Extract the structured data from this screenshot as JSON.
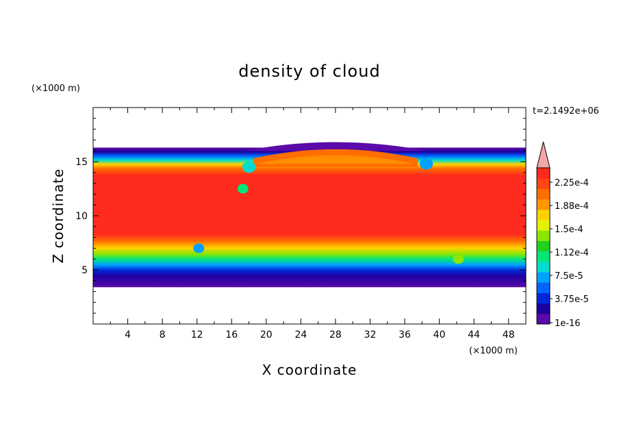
{
  "chart_data": {
    "type": "heatmap",
    "title": "density of cloud",
    "xlabel": "X coordinate",
    "ylabel": "Z coordinate",
    "x_unit": "(×1000 m)",
    "y_unit": "(×1000 m)",
    "time_label": "t=2.1492e+06",
    "xlim": [
      0,
      50
    ],
    "ylim": [
      0,
      20
    ],
    "x_ticks": [
      4,
      8,
      12,
      16,
      20,
      24,
      28,
      32,
      36,
      40,
      44,
      48
    ],
    "y_ticks": [
      5,
      10,
      15
    ],
    "colorbar": {
      "ticks": [
        "2.25e-4",
        "1.88e-4",
        "1.5e-4",
        "1.12e-4",
        "7.5e-5",
        "3.75e-5",
        "1e-16"
      ],
      "colors": [
        "#5a0aa8",
        "#1e00a0",
        "#0028d8",
        "#0064ff",
        "#00a0ff",
        "#00dcd0",
        "#00e67a",
        "#1ed21e",
        "#8ce600",
        "#e6f000",
        "#ffd200",
        "#ff9600",
        "#ff6e00",
        "#ff4614",
        "#ff2a1e"
      ],
      "extend_color": "#f4a6a6"
    },
    "layers": [
      {
        "z": [
          15.7,
          16.3
        ],
        "value": "1e-16"
      },
      {
        "z": [
          15.0,
          15.7
        ],
        "value": "7.5e-5"
      },
      {
        "z": [
          14.0,
          15.0
        ],
        "value": "1.5e-4"
      },
      {
        "z": [
          7.0,
          14.0
        ],
        "value": "2.25e-4"
      },
      {
        "z": [
          5.5,
          7.0
        ],
        "value": "1.5e-4"
      },
      {
        "z": [
          4.3,
          5.5
        ],
        "value": "7.5e-5"
      },
      {
        "z": [
          3.4,
          4.3
        ],
        "value": "1e-16"
      }
    ]
  }
}
